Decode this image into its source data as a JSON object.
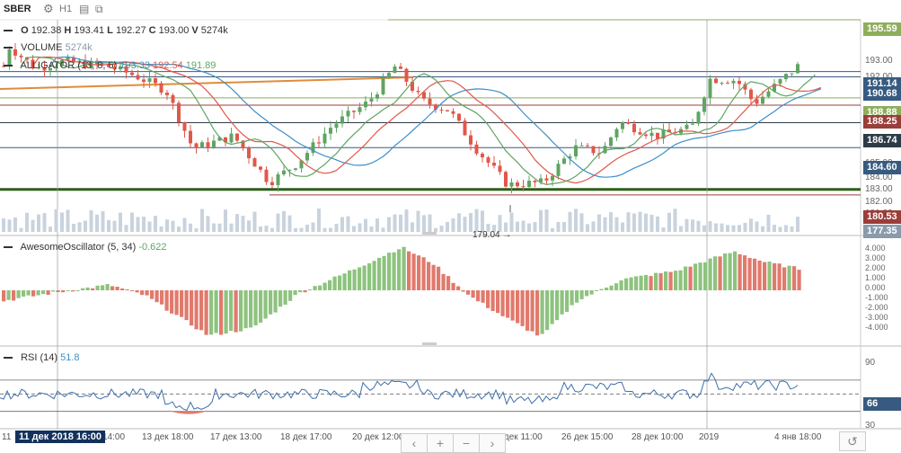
{
  "toolbar": {
    "symbol": "SBER",
    "gear_icon": "gear-icon",
    "interval": "H1",
    "chart_icon": "chart-icon",
    "copy_icon": "copy-icon"
  },
  "ohlcv": {
    "o_label": "O",
    "o": "192.38",
    "h_label": "H",
    "h": "193.41",
    "l_label": "L",
    "l": "192.27",
    "c_label": "C",
    "c": "193.00",
    "v_label": "V",
    "v": "5274k"
  },
  "volume_legend": {
    "name": "VOLUME",
    "value": "5274k"
  },
  "alligator_legend": {
    "name": "ALLIGATOR (13, 8, 5)",
    "jaw": "193.33",
    "teeth": "192.54",
    "lips": "191.89",
    "colors": {
      "jaw": "#3f8fc7",
      "teeth": "#e0584a",
      "lips": "#5fa463"
    }
  },
  "ao_legend": {
    "name": "AwesomeOscillator (5, 34)",
    "value": "-0.622"
  },
  "rsi_legend": {
    "name": "RSI (14)",
    "value": "51.8"
  },
  "price_axis": {
    "labels": [
      "193.00",
      "192.00",
      "190.00",
      "188.00",
      "187.00",
      "185.00",
      "184.00",
      "183.00",
      "182.00",
      "181.00"
    ],
    "tags": [
      {
        "value": "195.59",
        "color": "#8fae5b"
      },
      {
        "value": "191.14",
        "color": "#375b80"
      },
      {
        "value": "190.68",
        "color": "#375b80"
      },
      {
        "value": "188.88",
        "color": "#8fae5b"
      },
      {
        "value": "188.25",
        "color": "#9b3d38"
      },
      {
        "value": "186.74",
        "color": "#2d3b47"
      },
      {
        "value": "184.60",
        "color": "#375b80"
      },
      {
        "value": "180.53",
        "color": "#9b3d38"
      },
      {
        "value": "177.35",
        "color": "#8a9aaa"
      }
    ]
  },
  "annotation_low": "179.04 →",
  "ao_axis": [
    "4.000",
    "3.000",
    "2.000",
    "1.000",
    "0.000",
    "-1.000",
    "-2.000",
    "-3.000",
    "-4.000"
  ],
  "rsi_axis": {
    "top": "90",
    "current": "66",
    "low": "30"
  },
  "time_axis": {
    "cursor": "11 дек 2018 16:00",
    "first": "11",
    "labels": [
      "14:00",
      "13 дек 18:00",
      "17 дек 13:00",
      "18 дек 17:00",
      "20 дек 12:00",
      "21 дек 16:00",
      "25 дек 11:00",
      "26 дек 15:00",
      "28 дек 10:00",
      "2019",
      "4 янв 18:00"
    ]
  },
  "nav": {
    "left": "‹",
    "zoom_in": "+",
    "zoom_out": "−",
    "right": "›",
    "reset": "↺"
  },
  "chart_data": {
    "type": "candlestick",
    "ylim": [
      177.35,
      195.59
    ],
    "ohlc_last": {
      "open": 192.38,
      "high": 193.41,
      "low": 192.27,
      "close": 193.0,
      "volume": "5274k"
    },
    "price_lines": [
      195.59,
      191.14,
      190.68,
      188.88,
      188.25,
      186.74,
      184.6,
      181.0,
      180.53
    ],
    "low_marker": 179.04,
    "ao_range": [
      -4,
      4
    ],
    "rsi_levels": [
      30,
      50,
      66,
      90
    ]
  }
}
